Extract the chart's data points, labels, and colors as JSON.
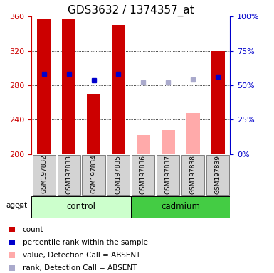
{
  "title": "GDS3632 / 1374357_at",
  "samples": [
    "GSM197832",
    "GSM197833",
    "GSM197834",
    "GSM197835",
    "GSM197836",
    "GSM197837",
    "GSM197838",
    "GSM197839"
  ],
  "bar_values": [
    357,
    357,
    270,
    350,
    222,
    228,
    248,
    320
  ],
  "bar_colors": [
    "#cc0000",
    "#cc0000",
    "#cc0000",
    "#cc0000",
    "#ffaaaa",
    "#ffaaaa",
    "#ffaaaa",
    "#cc0000"
  ],
  "rank_values": [
    293,
    293,
    286,
    293,
    null,
    null,
    null,
    290
  ],
  "rank_color": "#0000cc",
  "absent_rank_values": [
    null,
    null,
    null,
    null,
    283,
    283,
    287,
    null
  ],
  "absent_rank_color": "#aaaacc",
  "ylim_left": [
    200,
    360
  ],
  "ylim_right": [
    0,
    100
  ],
  "yticks_left": [
    200,
    240,
    280,
    320,
    360
  ],
  "yticks_right": [
    0,
    25,
    50,
    75,
    100
  ],
  "right_tick_labels": [
    "0%",
    "25%",
    "50%",
    "75%",
    "100%"
  ],
  "control_color": "#ccffcc",
  "cadmium_color": "#44cc44",
  "left_axis_color": "#cc0000",
  "right_axis_color": "#0000cc",
  "title_fontsize": 11,
  "tick_fontsize": 8,
  "legend_fontsize": 7.5,
  "bar_width": 0.55,
  "marker_size": 5
}
